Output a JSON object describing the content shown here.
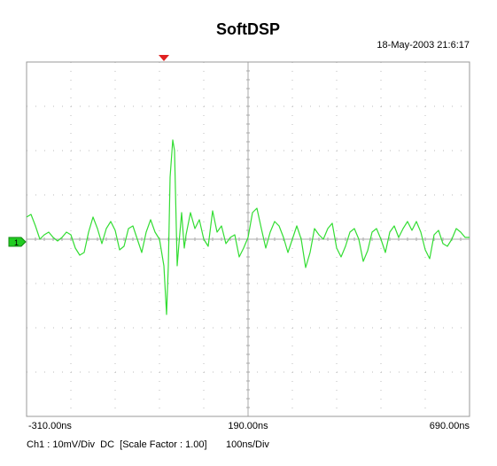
{
  "chart_data": {
    "type": "line",
    "title": "SoftDSP",
    "subtitle": "18-May-2003 21:6:17",
    "channel_marker": "1",
    "channel_label": "Ch1 : 10mV/Div  DC  [Scale Factor : 1.00]",
    "timebase": "100ns/Div",
    "color": "#33dd33",
    "xlim": [
      -310,
      690
    ],
    "ylim": [
      -40,
      40
    ],
    "xticks": [
      {
        "value": -310,
        "label": "-310.00ns"
      },
      {
        "value": 190,
        "label": "190.00ns"
      },
      {
        "value": 690,
        "label": "690.00ns"
      }
    ],
    "x": [
      -310,
      -300,
      -290,
      -280,
      -270,
      -260,
      -250,
      -240,
      -230,
      -220,
      -210,
      -200,
      -190,
      -180,
      -170,
      -160,
      -150,
      -140,
      -130,
      -120,
      -110,
      -100,
      -90,
      -80,
      -70,
      -60,
      -50,
      -40,
      -30,
      -20,
      -10,
      0,
      6,
      10,
      14,
      20,
      24,
      30,
      34,
      40,
      46,
      50,
      60,
      70,
      80,
      90,
      100,
      110,
      120,
      130,
      140,
      150,
      160,
      170,
      180,
      190,
      200,
      210,
      220,
      230,
      240,
      250,
      260,
      270,
      280,
      290,
      300,
      310,
      320,
      330,
      340,
      350,
      360,
      370,
      380,
      390,
      400,
      410,
      420,
      430,
      440,
      450,
      460,
      470,
      480,
      490,
      500,
      510,
      520,
      530,
      540,
      550,
      560,
      570,
      580,
      590,
      600,
      610,
      620,
      630,
      640,
      650,
      660,
      670,
      680,
      690
    ],
    "values": [
      5,
      5.6,
      3,
      0,
      1,
      1.6,
      0.4,
      -0.4,
      0.4,
      1.6,
      1,
      -2,
      -3.6,
      -3,
      1.6,
      5,
      2.4,
      -1,
      2.4,
      4,
      2,
      -2.4,
      -1.6,
      2.4,
      3,
      0,
      -3,
      1.6,
      4.4,
      1.6,
      0,
      -6,
      -17,
      -6,
      14,
      22.4,
      20,
      -6,
      -1,
      6,
      -2,
      1,
      6,
      2.4,
      4.4,
      0,
      -1.6,
      6.4,
      1.6,
      3,
      -1,
      0.4,
      1,
      -4,
      -2,
      0.4,
      6,
      7,
      2.4,
      -2,
      1.6,
      4,
      3,
      0.4,
      -3,
      0,
      3,
      0,
      -6.4,
      -3,
      2.4,
      1,
      0,
      2.4,
      3.6,
      -2,
      -4,
      -1.6,
      1.6,
      2.4,
      0,
      -5,
      -2.6,
      1.6,
      2.4,
      0,
      -3,
      1.6,
      3,
      0.4,
      2.4,
      4,
      2,
      4,
      1.6,
      -2.4,
      -4.4,
      1,
      2,
      -1,
      -1.6,
      0,
      2.4,
      1.6,
      0.4,
      0.4
    ]
  }
}
